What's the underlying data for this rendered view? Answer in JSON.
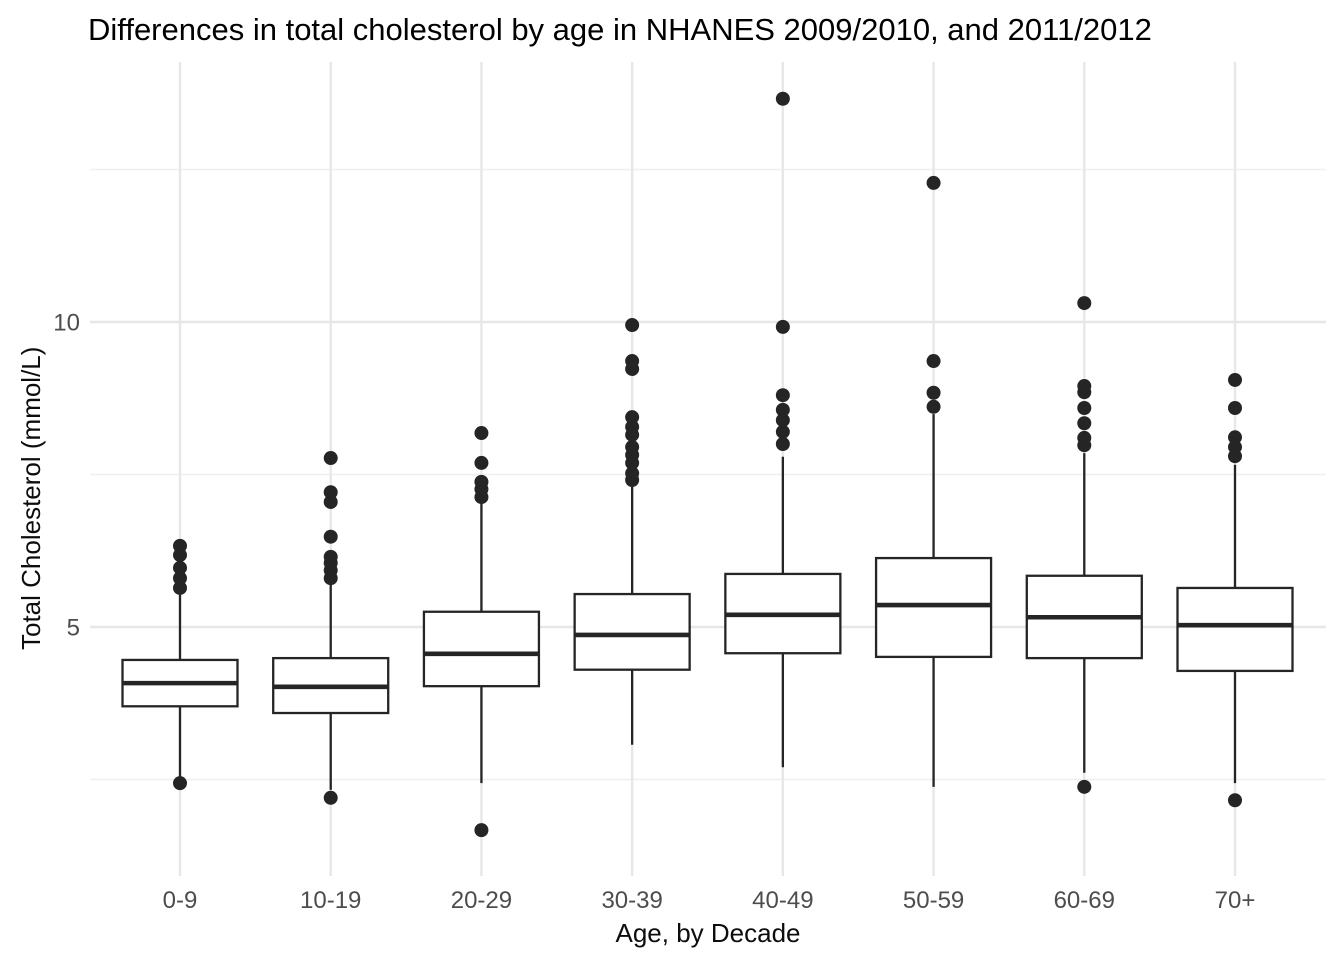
{
  "title": "Differences in total cholesterol by age in NHANES 2009/2010, and 2011/2012",
  "chart_data": {
    "type": "boxplot",
    "title": "Differences in total cholesterol by age in NHANES 2009/2010, and 2011/2012",
    "xlabel": "Age, by Decade",
    "ylabel": "Total Cholesterol (mmol/L)",
    "categories": [
      "0-9",
      "10-19",
      "20-29",
      "30-39",
      "40-49",
      "50-59",
      "60-69",
      "70+"
    ],
    "y_ticks": [
      5,
      10
    ],
    "y_minor_ticks": [
      2.5,
      7.5,
      12.5
    ],
    "ylim": [
      1.0,
      14.3
    ],
    "grid": true,
    "legend": "none",
    "series": [
      {
        "category": "0-9",
        "q1": 3.7,
        "median": 4.08,
        "q3": 4.46,
        "whisker_low": 2.55,
        "whisker_high": 5.54,
        "outliers_high": [
          5.64,
          5.8,
          5.97,
          6.18,
          6.33
        ],
        "outliers_low": [
          2.44
        ]
      },
      {
        "category": "10-19",
        "q1": 3.59,
        "median": 4.02,
        "q3": 4.49,
        "whisker_low": 2.33,
        "whisker_high": 5.72,
        "outliers_high": [
          5.8,
          5.93,
          6.05,
          6.15,
          6.48,
          7.05,
          7.21,
          7.77
        ],
        "outliers_low": [
          2.2
        ]
      },
      {
        "category": "20-29",
        "q1": 4.03,
        "median": 4.56,
        "q3": 5.25,
        "whisker_low": 2.44,
        "whisker_high": 7.05,
        "outliers_high": [
          7.13,
          7.26,
          7.38,
          7.69,
          8.18
        ],
        "outliers_low": [
          1.67
        ]
      },
      {
        "category": "30-39",
        "q1": 4.3,
        "median": 4.87,
        "q3": 5.54,
        "whisker_low": 3.07,
        "whisker_high": 7.3,
        "outliers_high": [
          7.41,
          7.52,
          7.69,
          7.82,
          7.95,
          8.15,
          8.28,
          8.44,
          9.23,
          9.36,
          9.95
        ],
        "outliers_low": []
      },
      {
        "category": "40-49",
        "q1": 4.57,
        "median": 5.2,
        "q3": 5.87,
        "whisker_low": 2.7,
        "whisker_high": 7.79,
        "outliers_high": [
          8.0,
          8.2,
          8.39,
          8.56,
          8.8,
          9.92,
          13.66
        ],
        "outliers_low": []
      },
      {
        "category": "50-59",
        "q1": 4.51,
        "median": 5.36,
        "q3": 6.13,
        "whisker_low": 2.38,
        "whisker_high": 8.49,
        "outliers_high": [
          8.61,
          8.84,
          9.36,
          12.28
        ],
        "outliers_low": []
      },
      {
        "category": "60-69",
        "q1": 4.49,
        "median": 5.16,
        "q3": 5.84,
        "whisker_low": 2.61,
        "whisker_high": 7.85,
        "outliers_high": [
          7.98,
          8.1,
          8.34,
          8.59,
          8.85,
          8.95,
          10.31
        ],
        "outliers_low": [
          2.38
        ]
      },
      {
        "category": "70+",
        "q1": 4.28,
        "median": 5.03,
        "q3": 5.64,
        "whisker_low": 2.44,
        "whisker_high": 7.66,
        "outliers_high": [
          7.8,
          7.95,
          8.11,
          8.59,
          9.05
        ],
        "outliers_low": [
          2.16
        ]
      }
    ],
    "colors": {
      "box_stroke": "#252525",
      "box_fill": "#ffffff",
      "median": "#252525",
      "outlier": "#252525",
      "grid_major": "#e7e7e7",
      "grid_minor": "#efefef",
      "tick_text": "#4d4d4d",
      "title_text": "#000000",
      "background": "#ffffff"
    }
  }
}
